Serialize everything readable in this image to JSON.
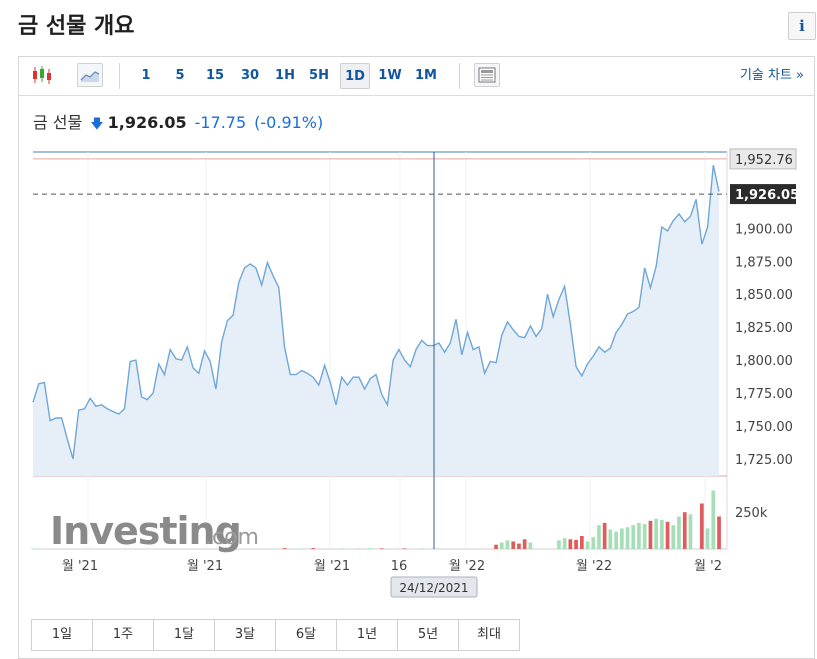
{
  "header": {
    "title": "금 선물 개요",
    "info_icon": "i"
  },
  "toolbar": {
    "intervals": [
      "1",
      "5",
      "15",
      "30",
      "1H",
      "5H",
      "1D",
      "1W",
      "1M"
    ],
    "active_interval": "1D",
    "technical_chart_link": "기술 차트 »",
    "icons": [
      "candlestick-icon",
      "area-chart-icon",
      "layout-icon"
    ]
  },
  "quote": {
    "name": "금 선물",
    "direction_icon": "down-arrow-icon",
    "price": "1,926.05",
    "change": "-17.75",
    "change_pct": "(-0.91%)"
  },
  "colors": {
    "line": "#6ea7d8",
    "area": "#e6eff8",
    "accent": "#1a6ed8",
    "volume_up": "#a6dfb7",
    "volume_down": "#e05b5b",
    "price_label_bg": "#2b2b2b",
    "high_line": "#e7a5a5"
  },
  "chart_data": {
    "type": "area",
    "price_axis": {
      "ticks": [
        "1,725.00",
        "1,750.00",
        "1,775.00",
        "1,800.00",
        "1,825.00",
        "1,850.00",
        "1,875.00",
        "1,900.00"
      ],
      "ylim": [
        1712,
        1958
      ]
    },
    "current_price_label": "1,926.05",
    "high_price_label": "1,952.76",
    "volume_axis_label": "250k",
    "x_labels": [
      "월 '21",
      "월 '21",
      "월 '21",
      "16",
      "월 '22",
      "월 '22",
      "월 '2"
    ],
    "crosshair_date": "24/12/2021",
    "watermark": "Investing",
    "watermark_suffix": ".com",
    "series": [
      {
        "values": [
          1768,
          1782,
          1783,
          1754,
          1756,
          1756,
          1740,
          1725,
          1762,
          1763,
          1771,
          1765,
          1766,
          1763,
          1761,
          1759,
          1763,
          1799,
          1800,
          1772,
          1770,
          1775,
          1797,
          1789,
          1808,
          1801,
          1800,
          1810,
          1794,
          1790,
          1807,
          1799,
          1778,
          1814,
          1830,
          1834,
          1859,
          1870,
          1873,
          1870,
          1857,
          1874,
          1864,
          1855,
          1810,
          1789,
          1789,
          1792,
          1790,
          1787,
          1781,
          1796,
          1783,
          1766,
          1787,
          1781,
          1787,
          1787,
          1778,
          1786,
          1789,
          1774,
          1766,
          1800,
          1808,
          1800,
          1795,
          1808,
          1815,
          1811,
          1811,
          1813,
          1806,
          1813,
          1831,
          1804,
          1821,
          1808,
          1810,
          1790,
          1799,
          1798,
          1819,
          1829,
          1823,
          1818,
          1817,
          1826,
          1818,
          1824,
          1850,
          1833,
          1846,
          1856,
          1827,
          1795,
          1788,
          1797,
          1803,
          1810,
          1806,
          1809,
          1821,
          1827,
          1835,
          1837,
          1840,
          1870,
          1855,
          1871,
          1901,
          1898,
          1906,
          1911,
          1905,
          1909,
          1922,
          1888,
          1901,
          1948,
          1928
        ]
      },
      {
        "name": "volume",
        "values": [
          3,
          0,
          0,
          0,
          0,
          0,
          0,
          0,
          0,
          0,
          0,
          0,
          0,
          0,
          0,
          0,
          0,
          0,
          0,
          0,
          0,
          0,
          0,
          0,
          0,
          0,
          0,
          0,
          0,
          0,
          0,
          0,
          0,
          0,
          0,
          0,
          0,
          0,
          0,
          0,
          0,
          0,
          0,
          0,
          4,
          0,
          0,
          3,
          0,
          4,
          0,
          0,
          0,
          0,
          3,
          0,
          0,
          3,
          0,
          4,
          0,
          3,
          0,
          0,
          0,
          3,
          0,
          0,
          3,
          0,
          0,
          0,
          0,
          0,
          0,
          0,
          0,
          0,
          0,
          0,
          0,
          20,
          30,
          40,
          35,
          25,
          45,
          30,
          0,
          0,
          0,
          0,
          40,
          50,
          45,
          42,
          60,
          35,
          55,
          110,
          120,
          90,
          80,
          95,
          100,
          110,
          120,
          115,
          130,
          140,
          135,
          125,
          110,
          150,
          170,
          160,
          0,
          210,
          95,
          270,
          150
        ]
      }
    ]
  },
  "range_buttons": [
    "1일",
    "1주",
    "1달",
    "3달",
    "6달",
    "1년",
    "5년",
    "최대"
  ]
}
